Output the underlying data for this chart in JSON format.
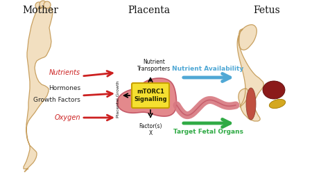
{
  "background_color": "#ffffff",
  "mother_label": "Mother",
  "placenta_label": "Placenta",
  "fetus_label": "Fetus",
  "skin_color": "#f2dfc0",
  "skin_edge": "#c8a060",
  "placenta_fill": "#e07c80",
  "placenta_edge": "#c05060",
  "mtorc1_fill": "#f5e030",
  "mtorc1_edge": "#c8a000",
  "mtorc1_text": "mTORC1\nSignalling",
  "arrow_red": "#cc2020",
  "arrow_blue": "#50a8d5",
  "arrow_green": "#30aa45",
  "label_nutrients": "Nutrients",
  "label_hormones": "Hormones",
  "label_growth": "Growth Factors",
  "label_oxygen": "Oxygen",
  "label_nt": "Nutrient\nTransporters",
  "label_pg": "Placental Growth",
  "label_fx": "Factor(s)\nX",
  "label_na": "Nutrient Availability",
  "label_tfo": "Target Fetal Organs",
  "liver_color": "#8b1a1a",
  "liver_edge": "#5a0808",
  "pancreas_color": "#d4a820",
  "pancreas_edge": "#a07800",
  "muscle_color": "#c05040",
  "muscle_edge": "#904030",
  "cord_color": "#d87880"
}
